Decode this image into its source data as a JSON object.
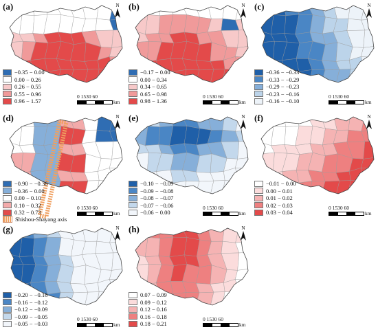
{
  "panels": [
    {
      "label": "(a)",
      "legend": [
        {
          "text": "−0.35 − 0.00",
          "color": "#2f6db3"
        },
        {
          "text": "0.00 − 0.26",
          "color": "#ffffff"
        },
        {
          "text": "0.26 − 0.55",
          "color": "#f7c9c9"
        },
        {
          "text": "0.55 − 0.96",
          "color": "#f09a9a"
        },
        {
          "text": "0.96 − 1.57",
          "color": "#e34a4a"
        }
      ]
    },
    {
      "label": "(b)",
      "legend": [
        {
          "text": "−0.17 − 0.00",
          "color": "#2f6db3"
        },
        {
          "text": "0.00 − 0.34",
          "color": "#ffffff"
        },
        {
          "text": "0.34 − 0.65",
          "color": "#f7c9c9"
        },
        {
          "text": "0.65 − 0.98",
          "color": "#f09a9a"
        },
        {
          "text": "0.98 − 1.36",
          "color": "#e34a4a"
        }
      ]
    },
    {
      "label": "(c)",
      "legend": [
        {
          "text": "−0.36 − −0.33",
          "color": "#1f5fa8"
        },
        {
          "text": "−0.33 − −0.29",
          "color": "#4a86c5"
        },
        {
          "text": "−0.29 − −0.23",
          "color": "#86afd9"
        },
        {
          "text": "−0.23 − −0.16",
          "color": "#bcd4ea"
        },
        {
          "text": "−0.16 − −0.10",
          "color": "#edf3f9"
        }
      ]
    },
    {
      "label": "(d)",
      "legend": [
        {
          "text": "−0.90 − −0.36",
          "color": "#2f6db3"
        },
        {
          "text": "−0.36 − 0.00",
          "color": "#86afd9"
        },
        {
          "text": "0.00 − 0.10",
          "color": "#ffffff"
        },
        {
          "text": "0.10 − 0.32",
          "color": "#f3aaaa"
        },
        {
          "text": "0.32 − 0.73",
          "color": "#e34a4a"
        }
      ]
    },
    {
      "label": "(e)",
      "legend": [
        {
          "text": "−0.10 − −0.09",
          "color": "#1f5fa8"
        },
        {
          "text": "−0.09 − −0.08",
          "color": "#4a86c5"
        },
        {
          "text": "−0.08 − −0.07",
          "color": "#86afd9"
        },
        {
          "text": "−0.07 − −0.06",
          "color": "#c3d8ec"
        },
        {
          "text": "−0.06 − 0.00",
          "color": "#f2f6fb"
        }
      ]
    },
    {
      "label": "(f)",
      "legend": [
        {
          "text": "−0.01 − 0.00",
          "color": "#ffffff"
        },
        {
          "text": "0.00 − 0.01",
          "color": "#fbdcdc"
        },
        {
          "text": "0.01 − 0.02",
          "color": "#f5b3b3"
        },
        {
          "text": "0.02 − 0.03",
          "color": "#ee8080"
        },
        {
          "text": "0.03 − 0.04",
          "color": "#e34a4a"
        }
      ]
    },
    {
      "label": "(g)",
      "legend": [
        {
          "text": "−0.20 − −0.16",
          "color": "#1f5fa8"
        },
        {
          "text": "−0.16 − −0.12",
          "color": "#4a86c5"
        },
        {
          "text": "−0.12 − −0.09",
          "color": "#86afd9"
        },
        {
          "text": "−0.09 − −0.05",
          "color": "#c3d8ec"
        },
        {
          "text": "−0.05 − −0.03",
          "color": "#f2f6fb"
        }
      ]
    },
    {
      "label": "(h)",
      "legend": [
        {
          "text": "0.07 − 0.09",
          "color": "#ffffff"
        },
        {
          "text": "0.09 − 0.12",
          "color": "#fbdcdc"
        },
        {
          "text": "0.12 − 0.16",
          "color": "#f5b3b3"
        },
        {
          "text": "0.16 − 0.18",
          "color": "#ee8080"
        },
        {
          "text": "0.18 − 0.21",
          "color": "#e34a4a"
        }
      ]
    }
  ],
  "scale": {
    "ticks": "0 1530   60",
    "unit": "km"
  },
  "north": "N",
  "axis_legend": "Shishou-Shayang axis"
}
